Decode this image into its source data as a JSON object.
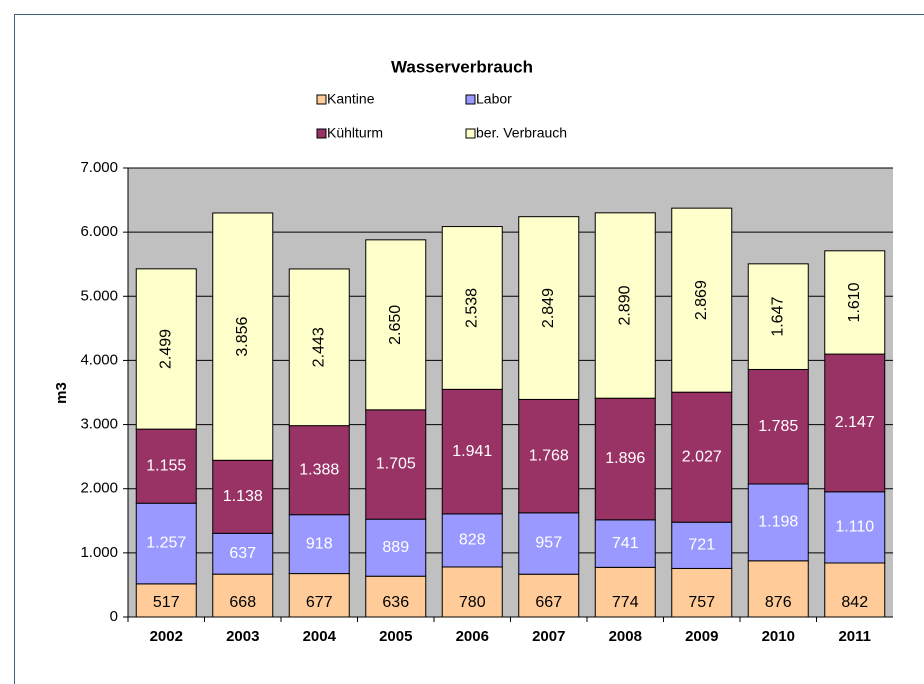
{
  "chart_data": {
    "type": "stacked_bar",
    "title": "Wasserverbrauch",
    "y_label": "m3",
    "categories": [
      "2002",
      "2003",
      "2004",
      "2005",
      "2006",
      "2007",
      "2008",
      "2009",
      "2010",
      "2011"
    ],
    "series": [
      {
        "name": "Kantine",
        "color": "#FFCC99",
        "values": [
          517,
          668,
          677,
          636,
          780,
          667,
          774,
          757,
          876,
          842
        ],
        "value_labels": [
          "517",
          "668",
          "677",
          "636",
          "780",
          "667",
          "774",
          "757",
          "876",
          "842"
        ]
      },
      {
        "name": "Labor",
        "color": "#9999FF",
        "values": [
          1257,
          637,
          918,
          889,
          828,
          957,
          741,
          721,
          1198,
          1110
        ],
        "value_labels": [
          "1.257",
          "637",
          "918",
          "889",
          "828",
          "957",
          "741",
          "721",
          "1.198",
          "1.110"
        ]
      },
      {
        "name": "Kühlturm",
        "color": "#993366",
        "values": [
          1155,
          1138,
          1388,
          1705,
          1941,
          1768,
          1896,
          2027,
          1785,
          2147
        ],
        "value_labels": [
          "1.155",
          "1.138",
          "1.388",
          "1.705",
          "1.941",
          "1.768",
          "1.896",
          "2.027",
          "1.785",
          "2.147"
        ]
      },
      {
        "name": "ber. Verbrauch",
        "color": "#FFFFCC",
        "values": [
          2499,
          3856,
          2443,
          2650,
          2538,
          2849,
          2890,
          2869,
          1647,
          1610
        ],
        "value_labels": [
          "2.499",
          "3.856",
          "2.443",
          "2.650",
          "2.538",
          "2.849",
          "2.890",
          "2.869",
          "1.647",
          "1.610"
        ]
      }
    ],
    "ylim": [
      0,
      7000
    ],
    "yticks": [
      0,
      {
        "value": 1000,
        "label": "1.000"
      },
      {
        "value": 2000,
        "label": "2.000"
      },
      {
        "value": 3000,
        "label": "3.000"
      },
      {
        "value": 4000,
        "label": "4.000"
      },
      {
        "value": 5000,
        "label": "5.000"
      },
      {
        "value": 6000,
        "label": "6.000"
      },
      {
        "value": 7000,
        "label": "7.000"
      }
    ],
    "grid": true,
    "plot_background": "#C0C0C0"
  }
}
